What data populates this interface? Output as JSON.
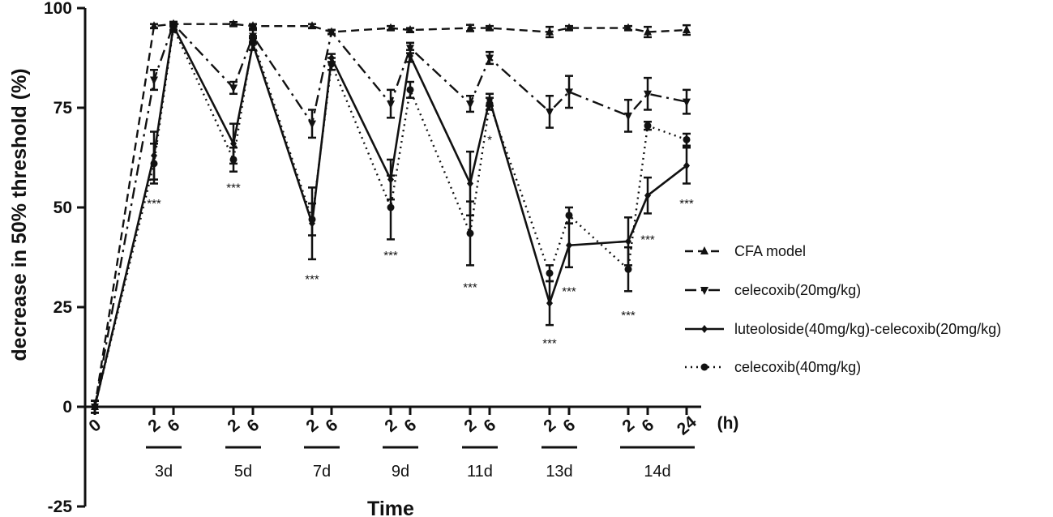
{
  "chart_data": {
    "type": "line",
    "ylabel": "decrease in 50% threshold (%)",
    "xlabel": "Time",
    "x_unit_label": "(h)",
    "ylim": [
      -25,
      100
    ],
    "yticks": [
      -25,
      0,
      25,
      50,
      75,
      100
    ],
    "x_tick_labels": [
      "0",
      "2",
      "6",
      "2",
      "6",
      "2",
      "6",
      "2",
      "6",
      "2",
      "6",
      "2",
      "6",
      "2",
      "6",
      "24"
    ],
    "day_groups": [
      {
        "label": "3d",
        "from": 1,
        "to": 2
      },
      {
        "label": "5d",
        "from": 3,
        "to": 4
      },
      {
        "label": "7d",
        "from": 5,
        "to": 6
      },
      {
        "label": "9d",
        "from": 7,
        "to": 8
      },
      {
        "label": "11d",
        "from": 9,
        "to": 10
      },
      {
        "label": "13d",
        "from": 11,
        "to": 12
      },
      {
        "label": "14d",
        "from": 13,
        "to": 15
      }
    ],
    "series": [
      {
        "name": "CFA model",
        "style": "dashed",
        "marker": "triangle-up",
        "values": [
          0,
          95.5,
          96,
          96,
          95.5,
          95.5,
          94,
          95,
          94.5,
          95,
          95,
          94,
          95,
          95,
          94,
          94.5
        ],
        "errors": [
          1.5,
          0.5,
          0.5,
          0.5,
          0.5,
          0.5,
          0.5,
          0.5,
          0.5,
          0.8,
          0.5,
          1.3,
          0.5,
          0.5,
          1.3,
          1.2
        ]
      },
      {
        "name": "celecoxib(20mg/kg)",
        "style": "dashed-long",
        "marker": "triangle-down",
        "values": [
          0,
          82,
          96,
          80,
          93,
          71,
          94,
          76,
          90,
          76,
          87.5,
          74,
          79,
          73,
          78.5,
          76.5
        ],
        "errors": [
          1.5,
          2.5,
          0.5,
          1.5,
          1.5,
          3.5,
          0.5,
          3.5,
          1.3,
          2,
          1.5,
          4,
          4,
          4,
          4,
          3
        ]
      },
      {
        "name": "luteoloside(40mg/kg)-celecoxib(20mg/kg)",
        "style": "solid",
        "marker": "diamond",
        "values": [
          0,
          63,
          95.5,
          66,
          91,
          46,
          87.5,
          57,
          88,
          56,
          77,
          26,
          40.5,
          41.5,
          53,
          60.5
        ],
        "errors": [
          1.5,
          6,
          1,
          5,
          1.5,
          9,
          1,
          5,
          1.5,
          8,
          1.5,
          5.5,
          5.5,
          6,
          4.5,
          4.5
        ]
      },
      {
        "name": "celecoxib(40mg/kg)",
        "style": "dotted",
        "marker": "circle",
        "values": [
          0,
          61,
          95,
          62,
          92,
          47,
          86,
          50,
          79.5,
          43.5,
          76,
          33.5,
          48,
          34.5,
          70.5,
          67
        ],
        "errors": [
          1.5,
          5,
          1,
          3,
          1,
          4,
          1.5,
          8,
          2,
          8,
          1.5,
          2,
          2,
          5.5,
          1,
          1.5
        ]
      }
    ],
    "significance": [
      {
        "x": 1,
        "y": 51,
        "text": "***"
      },
      {
        "x": 3,
        "y": 55,
        "text": "***"
      },
      {
        "x": 5,
        "y": 32,
        "text": "***"
      },
      {
        "x": 7,
        "y": 38,
        "text": "***"
      },
      {
        "x": 9,
        "y": 30,
        "text": "***"
      },
      {
        "x": 10,
        "y": 67,
        "text": "*"
      },
      {
        "x": 11,
        "y": 16,
        "text": "***"
      },
      {
        "x": 12,
        "y": 29,
        "text": "***"
      },
      {
        "x": 13,
        "y": 23,
        "text": "***"
      },
      {
        "x": 14,
        "y": 42,
        "text": "***"
      },
      {
        "x": 15,
        "y": 51,
        "text": "***"
      }
    ]
  }
}
